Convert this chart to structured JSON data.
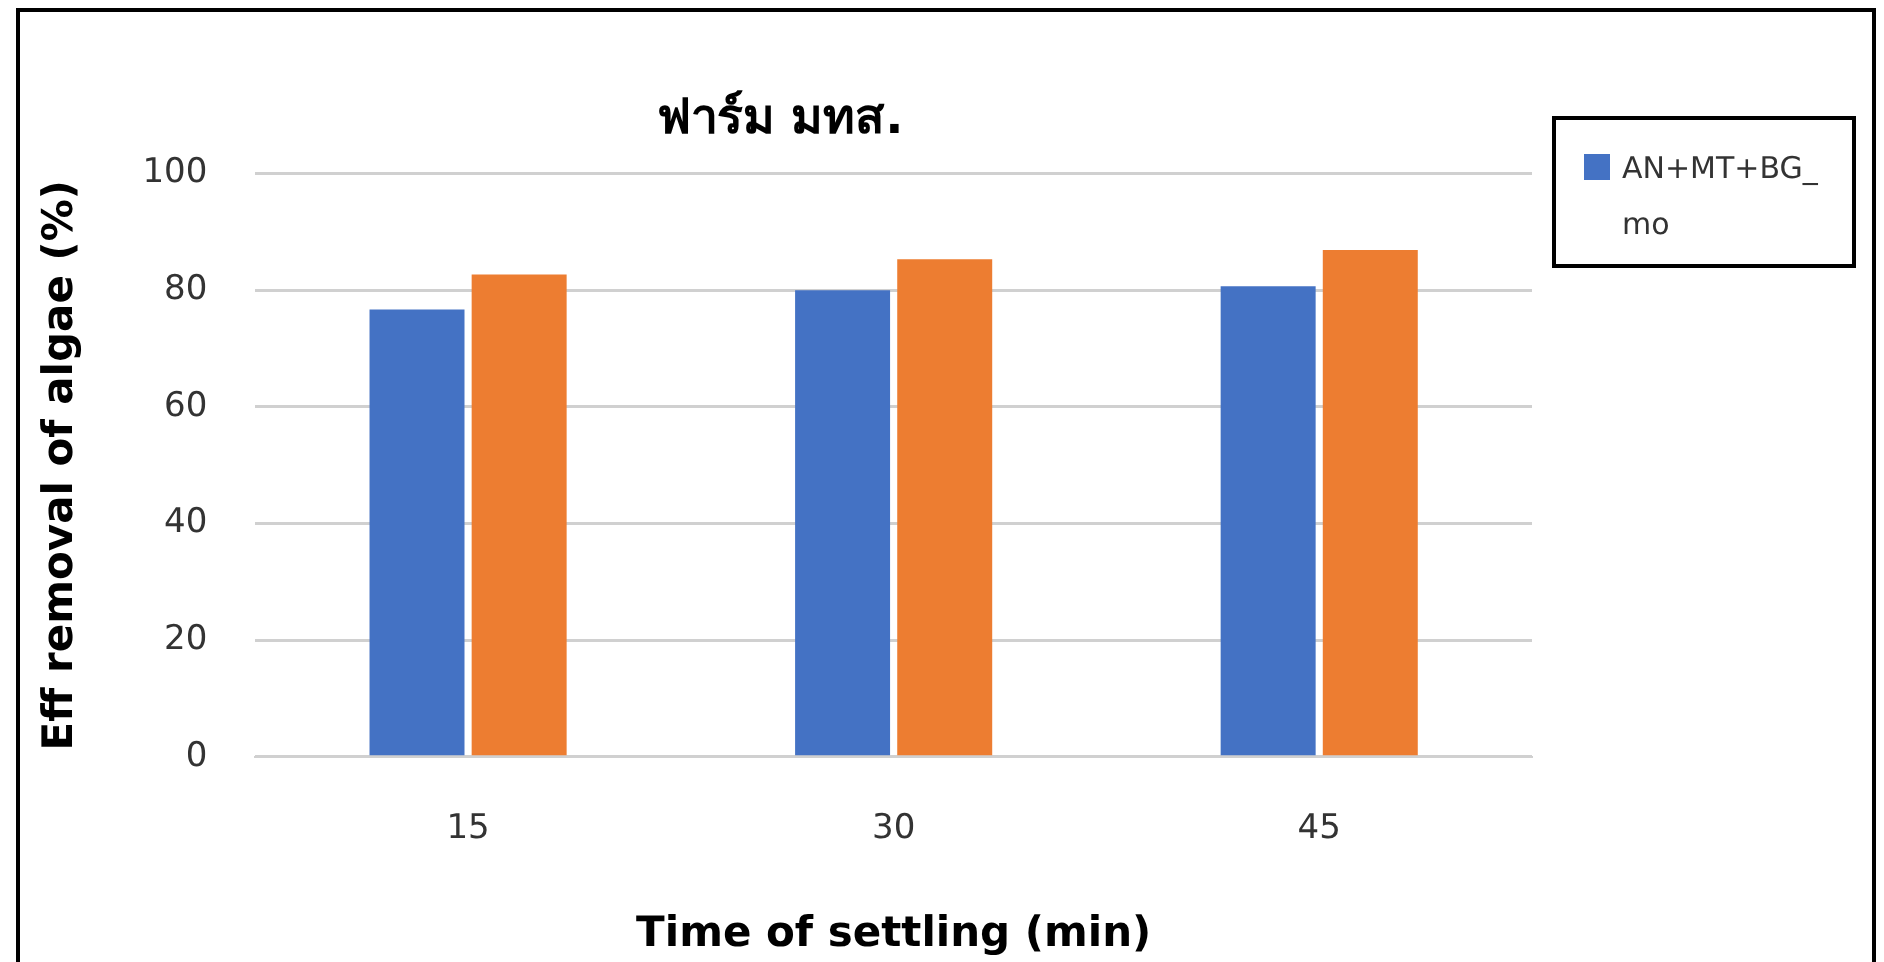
{
  "chart_data": {
    "type": "bar",
    "title": "ฟาร์ม มทส.",
    "xlabel": "Time of settling (min)",
    "ylabel": "Eff removal of algae (%)",
    "categories": [
      "15",
      "30",
      "45"
    ],
    "series": [
      {
        "name": "AN+MT+BG_mo",
        "color": "#4472c4",
        "values": [
          76.7,
          80,
          80.7
        ]
      },
      {
        "color": "#ed7d31",
        "values": [
          82.7,
          85.3,
          86.9
        ]
      }
    ],
    "ylim": [
      0,
      100
    ],
    "yticks": [
      0,
      20,
      40,
      60,
      80,
      100
    ],
    "grid": "y",
    "legend": "right"
  }
}
